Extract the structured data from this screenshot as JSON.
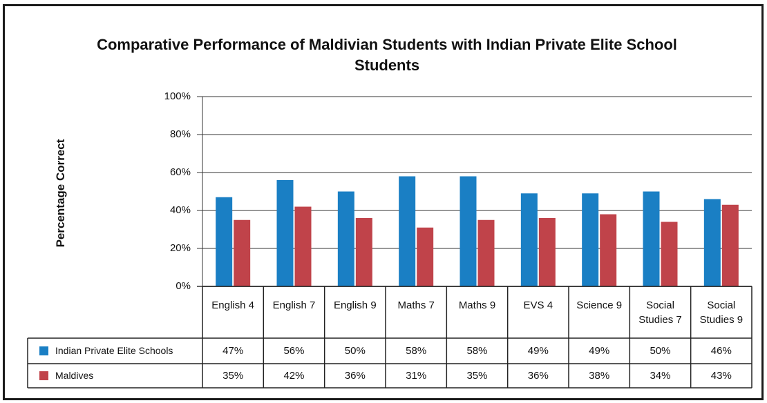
{
  "chart_data": {
    "type": "bar",
    "title": "Comparative Performance of Maldivian Students with Indian Private Elite School Students",
    "ylabel": "Percentage Correct",
    "xlabel": "",
    "ylim": [
      0,
      100
    ],
    "yticks": [
      "100%",
      "80%",
      "60%",
      "40%",
      "20%",
      "0%"
    ],
    "grid": true,
    "legend_position": "bottom table",
    "categories": [
      "English 4",
      "English 7",
      "English 9",
      "Maths 7",
      "Maths 9",
      "EVS 4",
      "Science 9",
      "Social Studies 7",
      "Social Studies 9"
    ],
    "series": [
      {
        "name": "Indian Private Elite Schools",
        "color": "#1a7fc4",
        "values": [
          47,
          56,
          50,
          58,
          58,
          49,
          49,
          50,
          46
        ],
        "labels": [
          "47%",
          "56%",
          "50%",
          "58%",
          "58%",
          "49%",
          "49%",
          "50%",
          "46%"
        ]
      },
      {
        "name": "Maldives",
        "color": "#c0434a",
        "values": [
          35,
          42,
          36,
          31,
          35,
          36,
          38,
          34,
          43
        ],
        "labels": [
          "35%",
          "42%",
          "36%",
          "31%",
          "35%",
          "36%",
          "38%",
          "34%",
          "43%"
        ]
      }
    ]
  }
}
